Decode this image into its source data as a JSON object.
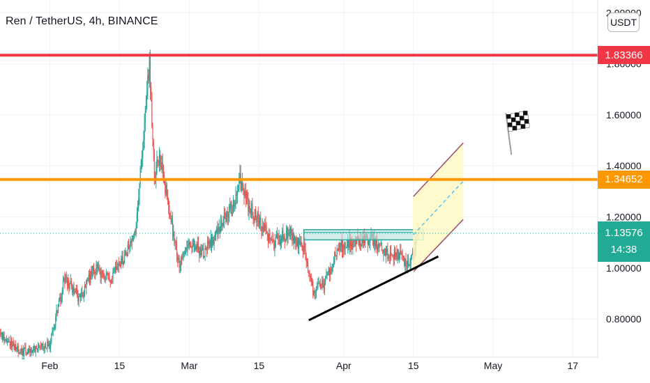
{
  "header": {
    "title": "Ren / TetherUS, 4h, BINANCE",
    "currency_button": "USDT"
  },
  "colors": {
    "resistance_red": "#f23645",
    "resistance_orange": "#ff9800",
    "candle_up": "#26a69a",
    "candle_down": "#ef5350",
    "current_price": "#22ab94",
    "channel_fill": "#fff9c4",
    "channel_border": "#9c4a6a",
    "trendline": "#000000",
    "zone_fill": "#b2dfdb",
    "zone_border": "#26a69a"
  },
  "price_labels": {
    "red_level": "1.83366",
    "orange_level": "1.34652",
    "current_price": "1.13576",
    "countdown": "14:38"
  },
  "chart_data": {
    "type": "candlestick",
    "symbol": "Ren / TetherUS",
    "interval": "4h",
    "exchange": "BINANCE",
    "xlabel": "",
    "ylabel": "",
    "x_ticks": [
      "Feb",
      "15",
      "Mar",
      "15",
      "Apr",
      "15",
      "May",
      "17"
    ],
    "x_tick_dates": [
      "2021-02-01",
      "2021-02-15",
      "2021-03-01",
      "2021-03-15",
      "2021-04-01",
      "2021-04-15",
      "2021-05-01",
      "2021-05-17"
    ],
    "y_ticks": [
      0.8,
      1.0,
      1.2,
      1.4,
      1.6,
      1.8,
      2.0
    ],
    "y_tick_labels": [
      "0.80000",
      "1.00000",
      "1.20000",
      "1.40000",
      "1.60000",
      "1.80000",
      "2.00000"
    ],
    "ylim": [
      0.65,
      2.05
    ],
    "xlim": [
      "2021-01-22",
      "2021-05-22"
    ],
    "grid": true,
    "anchors": [
      {
        "date": "2021-01-21",
        "price": 0.76
      },
      {
        "date": "2021-01-26",
        "price": 0.67
      },
      {
        "date": "2021-02-01",
        "price": 0.7
      },
      {
        "date": "2021-02-04",
        "price": 0.96
      },
      {
        "date": "2021-02-07",
        "price": 0.88
      },
      {
        "date": "2021-02-10",
        "price": 1.0
      },
      {
        "date": "2021-02-13",
        "price": 0.95
      },
      {
        "date": "2021-02-16",
        "price": 1.04
      },
      {
        "date": "2021-02-18",
        "price": 1.12
      },
      {
        "date": "2021-02-20",
        "price": 1.55
      },
      {
        "date": "2021-02-21",
        "price": 1.8
      },
      {
        "date": "2021-02-22",
        "price": 1.35
      },
      {
        "date": "2021-02-23",
        "price": 1.45
      },
      {
        "date": "2021-02-25",
        "price": 1.22
      },
      {
        "date": "2021-02-27",
        "price": 1.0
      },
      {
        "date": "2021-03-01",
        "price": 1.1
      },
      {
        "date": "2021-03-04",
        "price": 1.06
      },
      {
        "date": "2021-03-07",
        "price": 1.16
      },
      {
        "date": "2021-03-10",
        "price": 1.25
      },
      {
        "date": "2021-03-11",
        "price": 1.35
      },
      {
        "date": "2021-03-13",
        "price": 1.24
      },
      {
        "date": "2021-03-15",
        "price": 1.18
      },
      {
        "date": "2021-03-18",
        "price": 1.1
      },
      {
        "date": "2021-03-21",
        "price": 1.14
      },
      {
        "date": "2021-03-24",
        "price": 1.08
      },
      {
        "date": "2021-03-26",
        "price": 0.9
      },
      {
        "date": "2021-03-28",
        "price": 0.94
      },
      {
        "date": "2021-03-31",
        "price": 1.08
      },
      {
        "date": "2021-04-03",
        "price": 1.1
      },
      {
        "date": "2021-04-06",
        "price": 1.12
      },
      {
        "date": "2021-04-09",
        "price": 1.06
      },
      {
        "date": "2021-04-12",
        "price": 1.05
      },
      {
        "date": "2021-04-14",
        "price": 1.02
      },
      {
        "date": "2021-04-15",
        "price": 1.06
      },
      {
        "date": "2021-04-16",
        "price": 1.1358
      }
    ],
    "horizontal_lines": [
      {
        "name": "red_resistance",
        "price": 1.83366,
        "color": "#f23645"
      },
      {
        "name": "orange_resistance",
        "price": 1.34652,
        "color": "#ff9800"
      }
    ],
    "current_price": 1.13576,
    "trendlines": [
      {
        "name": "support",
        "from": {
          "date": "2021-03-25",
          "price": 0.795
        },
        "to": {
          "date": "2021-04-20",
          "price": 1.045
        }
      },
      {
        "name": "channel_upper",
        "from": {
          "date": "2021-04-15",
          "price": 1.28
        },
        "to": {
          "date": "2021-04-25",
          "price": 1.49
        }
      },
      {
        "name": "channel_lower",
        "from": {
          "date": "2021-04-15",
          "price": 0.985
        },
        "to": {
          "date": "2021-04-25",
          "price": 1.19
        }
      },
      {
        "name": "channel_mid",
        "from": {
          "date": "2021-04-15",
          "price": 1.13
        },
        "to": {
          "date": "2021-04-25",
          "price": 1.34
        }
      }
    ],
    "zones": [
      {
        "name": "consolidation_zone",
        "from_date": "2021-03-24",
        "to_date": "2021-04-17",
        "price_low": 1.11,
        "price_high": 1.15
      }
    ],
    "annotations": [
      {
        "type": "flag",
        "icon": "checkered-flag-icon",
        "date": "2021-05-03",
        "price": 1.52
      }
    ]
  }
}
